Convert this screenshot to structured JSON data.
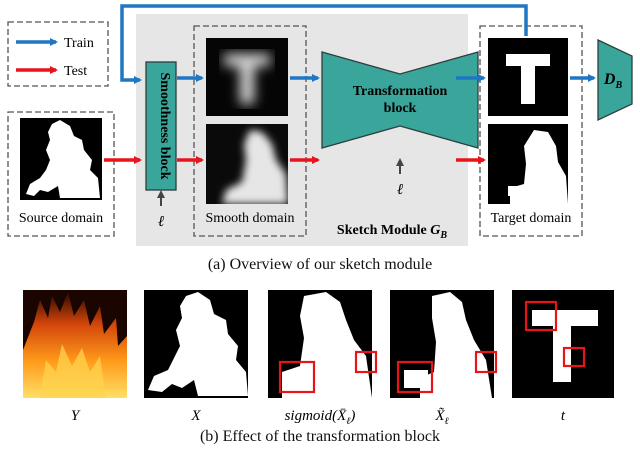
{
  "legend": {
    "train": "Train",
    "test": "Test"
  },
  "labels": {
    "source_domain": "Source domain",
    "smoothness_block": "Smoothness block",
    "smooth_domain": "Smooth domain",
    "transformation_block_line1": "Transformation",
    "transformation_block_line2": "block",
    "target_domain": "Target domain",
    "sketch_module_text": "Sketch Module ",
    "sketch_module_symbol": "G",
    "sketch_module_sub": "B",
    "discriminator_symbol": "D",
    "discriminator_sub": "B",
    "ell": "ℓ"
  },
  "captions": {
    "a": "(a) Overview of our sketch module",
    "b": "(b) Effect of the transformation block"
  },
  "bottom_labels": {
    "y": "Y",
    "x": "X",
    "sigmoid": "sigmoid(",
    "sigmoid_arg": "X̄",
    "sigmoid_sub": "ℓ",
    "sigmoid_close": ")",
    "xtilde": "X̃",
    "xtilde_sub": "ℓ",
    "t": "t"
  },
  "colors": {
    "train_arrow": "#1f77c4",
    "test_arrow": "#e8141a",
    "block_fill": "#3aa59a",
    "module_bg": "#e6e6e6",
    "highlight_box": "#e8141a"
  }
}
